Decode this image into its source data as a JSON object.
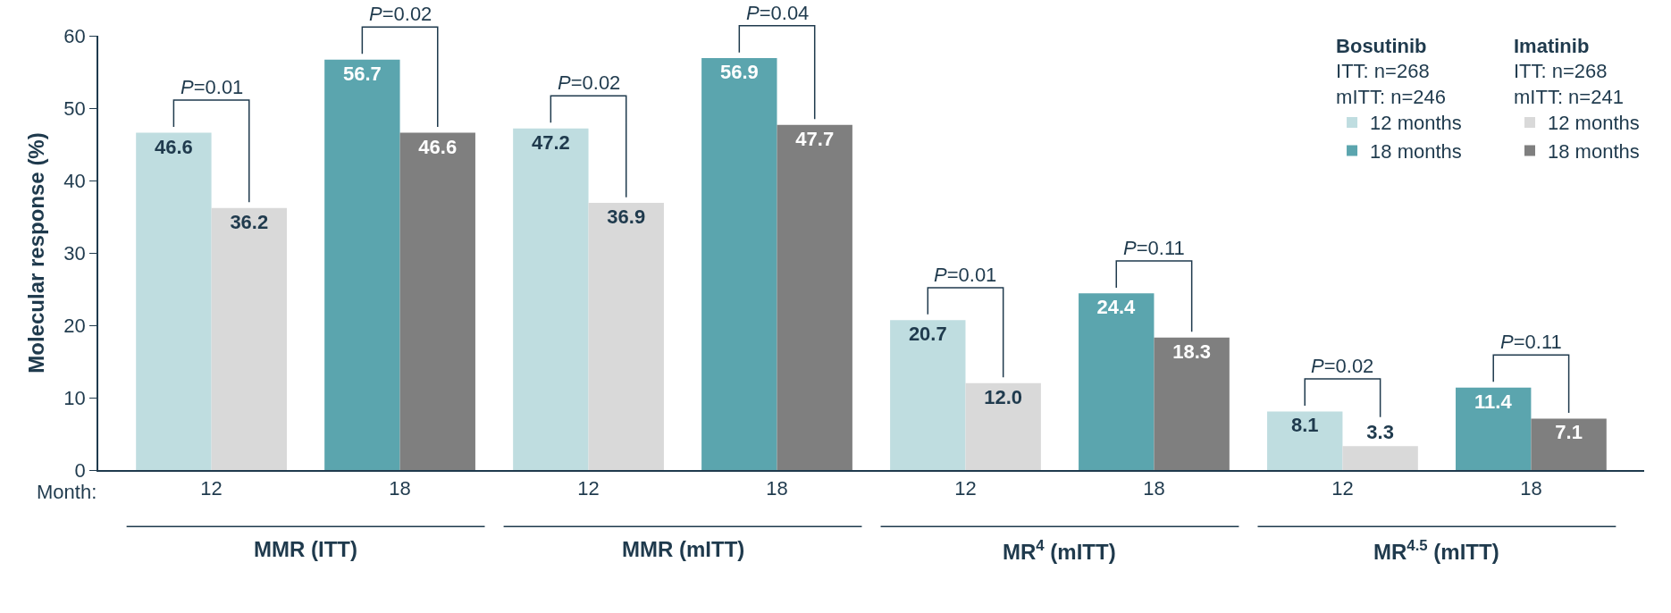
{
  "chart_data": {
    "type": "bar",
    "ylabel": "Molecular response (%)",
    "xlabel": "Month:",
    "categories": [
      "12",
      "18",
      "12",
      "18",
      "12",
      "18",
      "12",
      "18"
    ],
    "series": [
      {
        "name": "12 months",
        "color": "#bfdde0",
        "values": [
          46.6,
          null,
          47.2,
          null,
          20.7,
          null,
          8.1,
          null
        ]
      },
      {
        "name": "18 months",
        "color": "#5ba5ae",
        "values": [
          null,
          56.7,
          null,
          56.9,
          null,
          24.4,
          null,
          11.4
        ]
      },
      {
        "name": "12 months",
        "color": "#d9d9d9",
        "values": [
          36.2,
          null,
          36.9,
          null,
          12.0,
          null,
          3.3,
          null
        ],
        "value_labels": [
          "36.2",
          null,
          "36.9",
          null,
          "12.0",
          null,
          "3.3",
          null
        ]
      },
      {
        "name": "18 months",
        "color": "#7f7f7f",
        "values": [
          null,
          46.6,
          null,
          47.7,
          null,
          18.3,
          null,
          7.1
        ]
      }
    ],
    "legend_title": [
      "Bosutinib\nITT: n=268\nmITT: n=246",
      "Imatinib\nITT: n=268\nmITT: n=241"
    ],
    "legend": "top right",
    "ylim": [
      0,
      60
    ],
    "yticks": [
      0,
      10,
      20,
      30,
      40,
      50,
      60
    ],
    "data_labels": true,
    "annotations": [
      "P=0.01",
      "P=0.02",
      "P=0.02",
      "P=0.04",
      "P=0.01",
      "P=0.11",
      "P=0.02",
      "P=0.11",
      "MMR (ITT)",
      "MMR (mITT)",
      "MR$^{4}$ (mITT)",
      "MR$^{4.5}$ (mITT)"
    ]
  }
}
